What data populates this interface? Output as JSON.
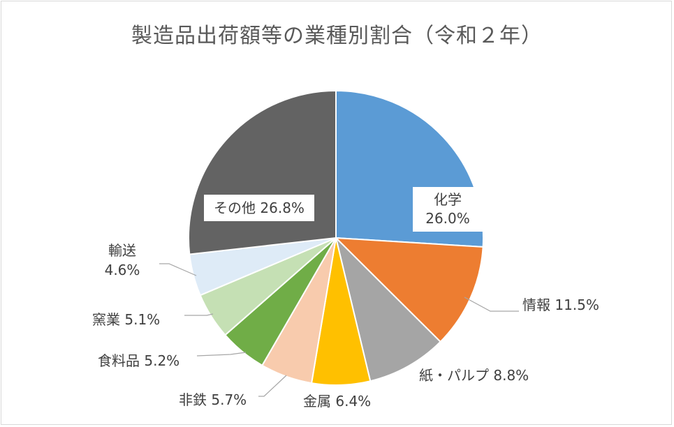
{
  "chart_data": {
    "type": "pie",
    "title": "製造品出荷額等の業種別割合（令和２年）",
    "unit": "%",
    "slices": [
      {
        "label": "化学",
        "value": 26.0,
        "value_text": "26.0%",
        "color": "#5b9bd5"
      },
      {
        "label": "情報",
        "value": 11.5,
        "value_text": "11.5%",
        "color": "#ed7d31"
      },
      {
        "label": "紙・パルプ",
        "value": 8.8,
        "value_text": "8.8%",
        "color": "#a5a5a5"
      },
      {
        "label": "金属",
        "value": 6.4,
        "value_text": "6.4%",
        "color": "#ffc000"
      },
      {
        "label": "非鉄",
        "value": 5.7,
        "value_text": "5.7%",
        "color": "#f8cbad"
      },
      {
        "label": "食料品",
        "value": 5.2,
        "value_text": "5.2%",
        "color": "#70ad47"
      },
      {
        "label": "窯業",
        "value": 5.1,
        "value_text": "5.1%",
        "color": "#c5e0b4"
      },
      {
        "label": "輸送",
        "value": 4.6,
        "value_text": "4.6%",
        "color": "#deebf7"
      },
      {
        "label": "その他",
        "value": 26.8,
        "value_text": "26.8%",
        "color": "#636363"
      }
    ]
  }
}
